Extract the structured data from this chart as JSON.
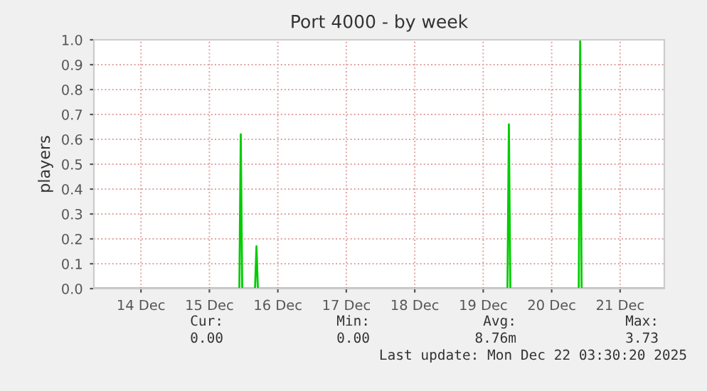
{
  "chart_data": {
    "type": "line",
    "title": "Port 4000 - by week",
    "ylabel": "players",
    "series": [
      {
        "color": "#00cc00",
        "x": [
          "2025-12-13T19:30",
          "2025-12-15T22:30",
          "2025-12-15T23:00",
          "2025-12-15T23:30",
          "2025-12-16T04:00",
          "2025-12-16T04:30",
          "2025-12-16T05:00",
          "2025-12-19T20:30",
          "2025-12-19T21:00",
          "2025-12-19T21:30",
          "2025-12-20T21:30",
          "2025-12-20T22:00",
          "2025-12-20T22:30",
          "2025-12-22T03:30"
        ],
        "values": [
          0,
          0,
          0.62,
          0,
          0,
          0.17,
          0,
          0,
          0.66,
          0,
          0,
          1.0,
          0,
          0
        ]
      }
    ],
    "xlim": [
      "2025-12-13T19:30",
      "2025-12-22T03:30"
    ],
    "xticks": [
      {
        "value": "2025-12-14T12:00",
        "label": "14 Dec"
      },
      {
        "value": "2025-12-15T12:00",
        "label": "15 Dec"
      },
      {
        "value": "2025-12-16T12:00",
        "label": "16 Dec"
      },
      {
        "value": "2025-12-17T12:00",
        "label": "17 Dec"
      },
      {
        "value": "2025-12-18T12:00",
        "label": "18 Dec"
      },
      {
        "value": "2025-12-19T12:00",
        "label": "19 Dec"
      },
      {
        "value": "2025-12-20T12:00",
        "label": "20 Dec"
      },
      {
        "value": "2025-12-21T12:00",
        "label": "21 Dec"
      }
    ],
    "ylim": [
      0,
      1.0
    ],
    "yticks": [
      {
        "value": 0,
        "label": "0.0"
      },
      {
        "value": 0.1,
        "label": "0.1"
      },
      {
        "value": 0.2,
        "label": "0.2"
      },
      {
        "value": 0.3,
        "label": "0.3"
      },
      {
        "value": 0.4,
        "label": "0.4"
      },
      {
        "value": 0.5,
        "label": "0.5"
      },
      {
        "value": 0.6,
        "label": "0.6"
      },
      {
        "value": 0.7,
        "label": "0.7"
      },
      {
        "value": 0.8,
        "label": "0.8"
      },
      {
        "value": 0.9,
        "label": "0.9"
      },
      {
        "value": 1.0,
        "label": "1.0"
      }
    ],
    "grid": true,
    "line_style": "solid",
    "annotations": [
      "Cur:",
      "Min:",
      "Avg:",
      "Max:",
      "0.00",
      "0.00",
      "8.76m",
      "3.73",
      "Last update: Mon Dec 22 03:30:20 2025"
    ]
  }
}
